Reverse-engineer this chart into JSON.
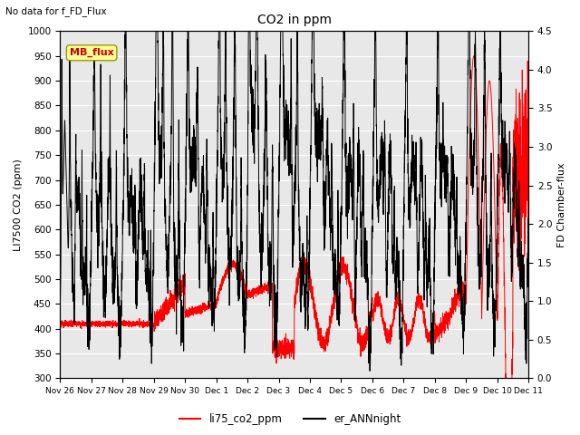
{
  "title": "CO2 in ppm",
  "subtitle": "No data for f_FD_Flux",
  "ylabel_left": "LI7500 CO2 (ppm)",
  "ylabel_right": "FD Chamber-flux",
  "ylim_left": [
    300,
    1000
  ],
  "ylim_right": [
    0.0,
    4.5
  ],
  "yticks_left": [
    300,
    350,
    400,
    450,
    500,
    550,
    600,
    650,
    700,
    750,
    800,
    850,
    900,
    950,
    1000
  ],
  "yticks_right": [
    0.0,
    0.5,
    1.0,
    1.5,
    2.0,
    2.5,
    3.0,
    3.5,
    4.0,
    4.5
  ],
  "xtick_labels": [
    "Nov 26",
    "Nov 27",
    "Nov 28",
    "Nov 29",
    "Nov 30",
    "Dec 1",
    "Dec 2",
    "Dec 3",
    "Dec 4",
    "Dec 5",
    "Dec 6",
    "Dec 7",
    "Dec 8",
    "Dec 9",
    "Dec 10",
    "Dec 11"
  ],
  "legend_labels": [
    "li75_co2_ppm",
    "er_ANNnight"
  ],
  "legend_colors": [
    "#ff0000",
    "#000000"
  ],
  "line_color_red": "#ff0000",
  "line_color_black": "#000000",
  "mb_flux_box_color": "#ffff99",
  "mb_flux_text_color": "#cc0000",
  "background_color": "#e8e8e8",
  "grid_color": "#ffffff"
}
